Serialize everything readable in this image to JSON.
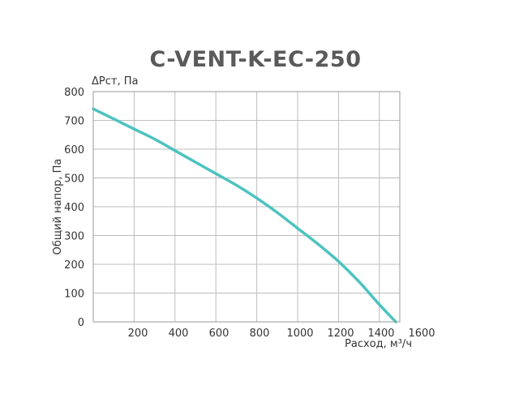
{
  "chart_data": {
    "type": "line",
    "title": "C-VENT-K-EC-250",
    "xlabel": "Расход, м³/ч",
    "ylabel": "Общий напор, Па",
    "ylabel_top": "ΔРст, Па",
    "xlim": [
      0,
      1500
    ],
    "ylim": [
      0,
      800
    ],
    "x_ticks": [
      "200",
      "400",
      "600",
      "800",
      "1000",
      "1200",
      "1400",
      "1600"
    ],
    "y_ticks": [
      "0",
      "100",
      "200",
      "300",
      "400",
      "500",
      "600",
      "700",
      "800"
    ],
    "grid": true,
    "series": [
      {
        "color": "#4cc3c0",
        "x": [
          0,
          100,
          200,
          300,
          400,
          500,
          600,
          700,
          800,
          900,
          1000,
          1100,
          1200,
          1300,
          1400,
          1480
        ],
        "y": [
          740,
          705,
          670,
          635,
          595,
          555,
          515,
          475,
          430,
          380,
          325,
          270,
          210,
          140,
          60,
          0
        ]
      }
    ]
  }
}
